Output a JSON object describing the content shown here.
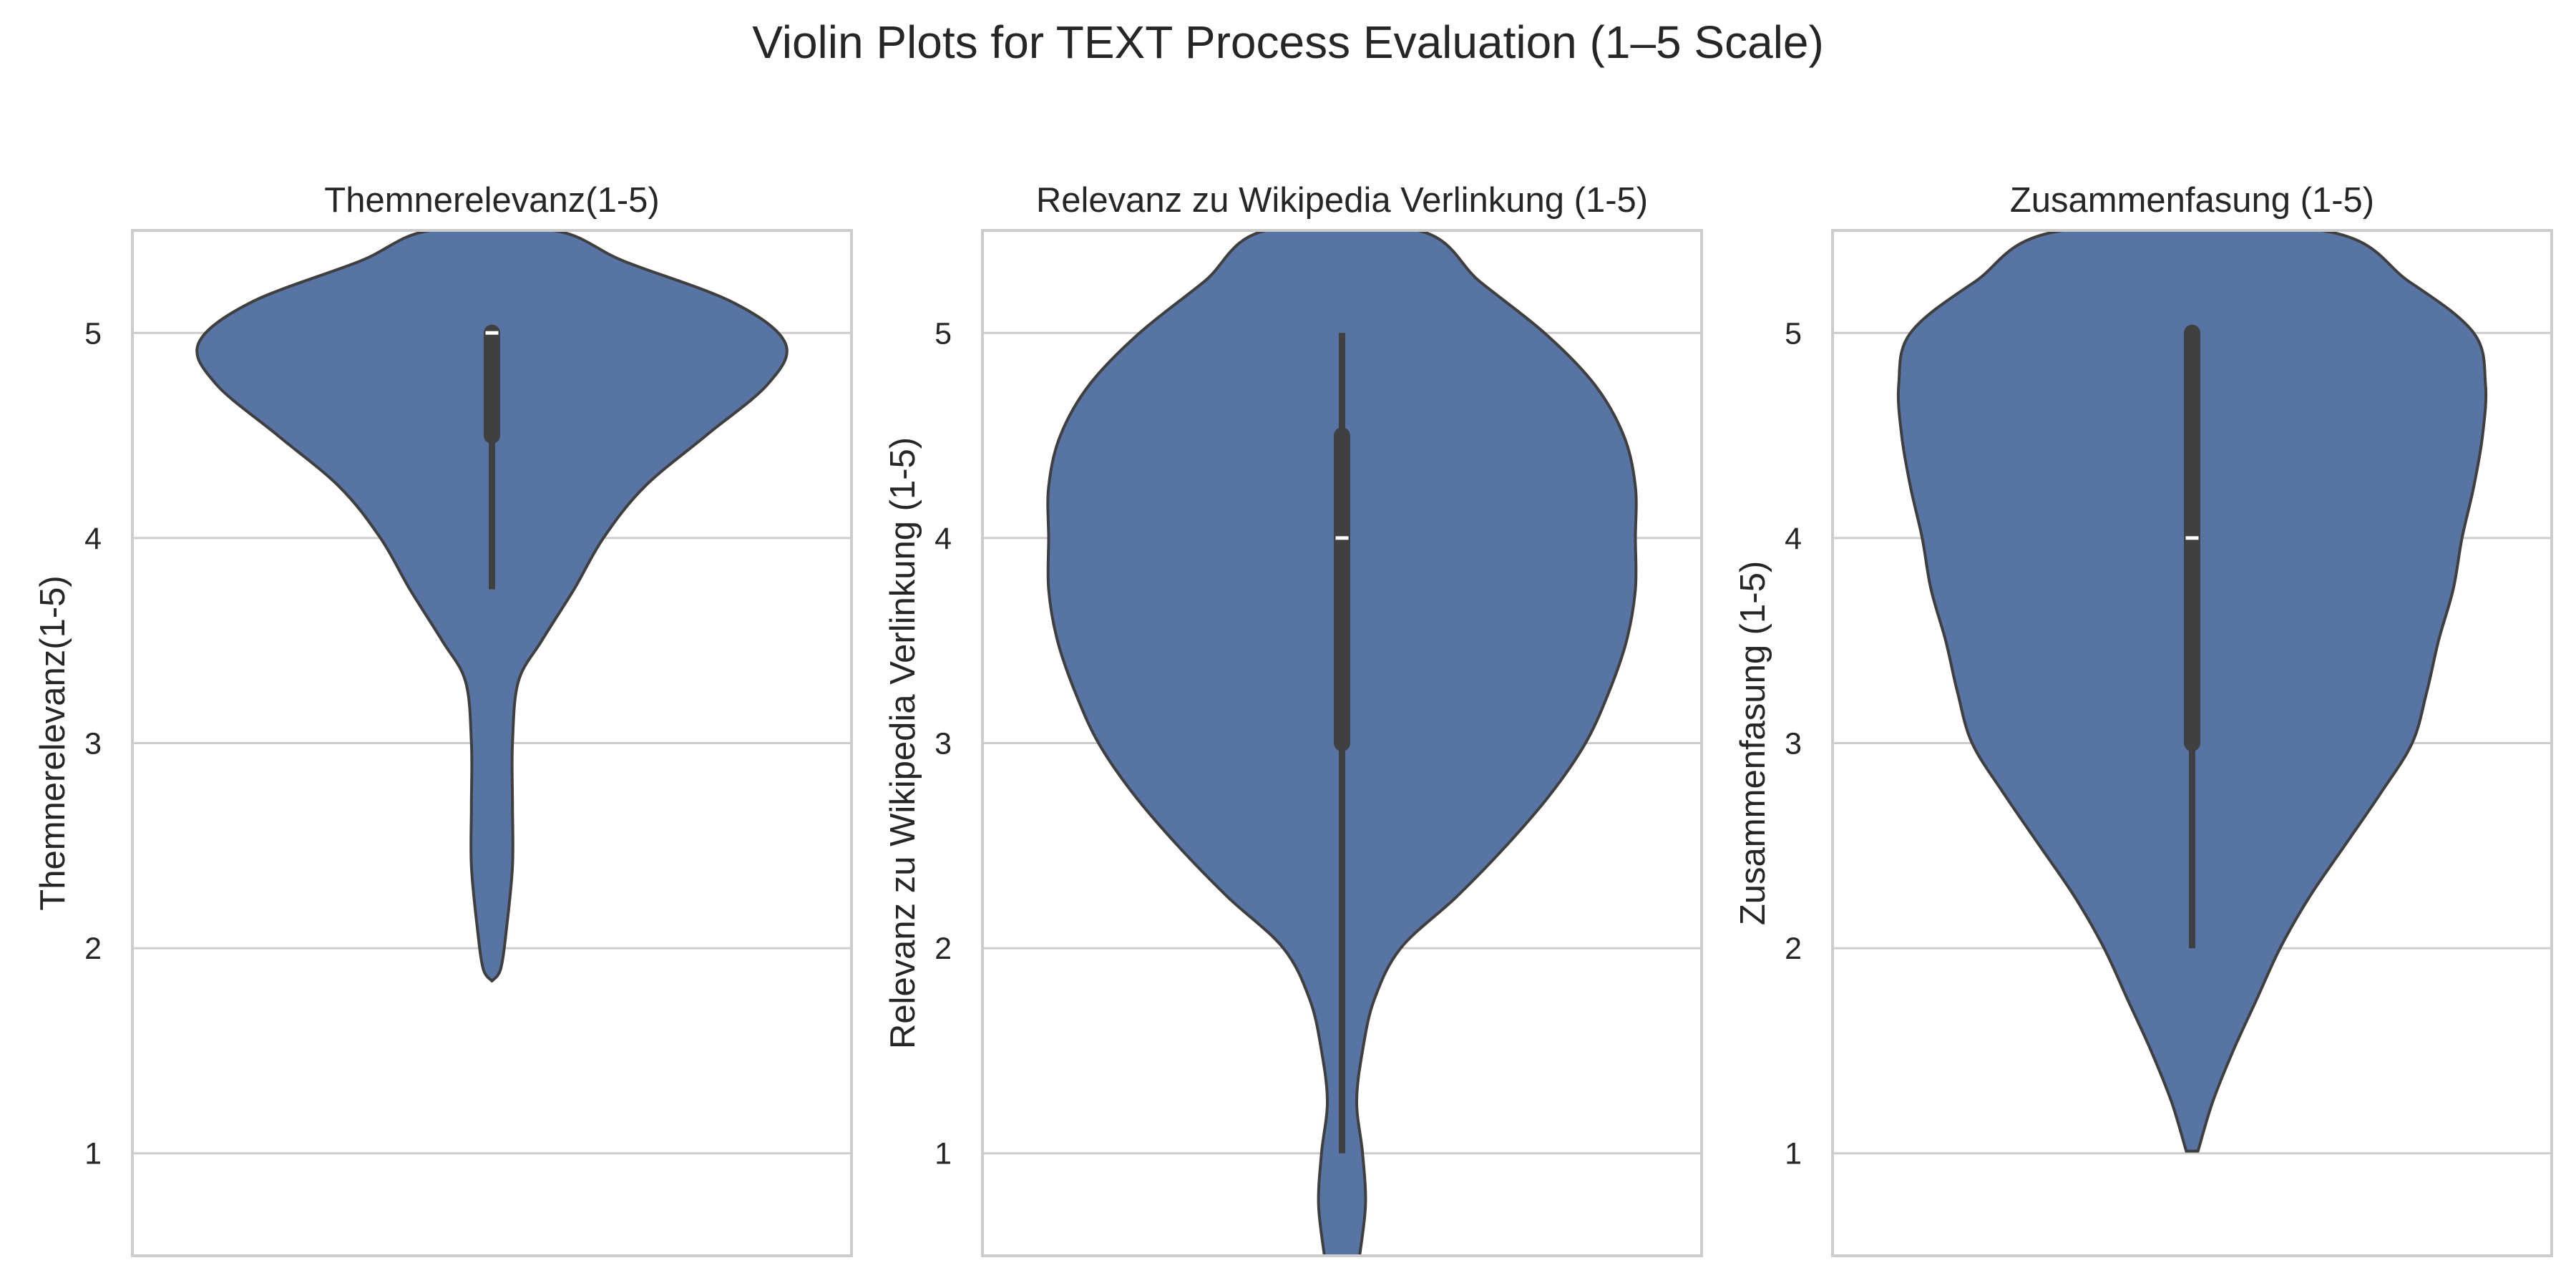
{
  "figure": {
    "title": "Violin Plots for TEXT Process Evaluation (1–5 Scale)"
  },
  "style": {
    "violin_fill": "#5874a4",
    "violin_edge": "#3f3f3f",
    "box_color": "#404040",
    "median_color": "#ffffff",
    "grid_color": "#cccccc",
    "frame_color": "#cccccc"
  },
  "chart_data": [
    {
      "type": "violin",
      "title": "Themnerelevanz(1-5)",
      "xlabel": "",
      "ylabel": "Themnerelevanz(1-5)",
      "ylim": [
        0.5,
        5.5
      ],
      "yticks": [
        "1",
        "2",
        "3",
        "4",
        "5"
      ],
      "grid": true,
      "stats": {
        "min": 3.75,
        "q1": 4.5,
        "median": 5,
        "q3": 5,
        "max": 5
      },
      "density": [
        {
          "y": 1.84,
          "w": 0.0
        },
        {
          "y": 1.9,
          "w": 0.03
        },
        {
          "y": 2.1,
          "w": 0.05
        },
        {
          "y": 2.4,
          "w": 0.07
        },
        {
          "y": 2.7,
          "w": 0.07
        },
        {
          "y": 3.0,
          "w": 0.07
        },
        {
          "y": 3.3,
          "w": 0.09
        },
        {
          "y": 3.5,
          "w": 0.17
        },
        {
          "y": 3.75,
          "w": 0.28
        },
        {
          "y": 4.0,
          "w": 0.38
        },
        {
          "y": 4.25,
          "w": 0.52
        },
        {
          "y": 4.5,
          "w": 0.73
        },
        {
          "y": 4.75,
          "w": 0.94
        },
        {
          "y": 4.95,
          "w": 1.0
        },
        {
          "y": 5.15,
          "w": 0.82
        },
        {
          "y": 5.35,
          "w": 0.45
        },
        {
          "y": 5.5,
          "w": 0.21
        }
      ]
    },
    {
      "type": "violin",
      "title": "Relevanz zu Wikipedia Verlinkung (1-5)",
      "xlabel": "",
      "ylabel": "Relevanz zu Wikipedia Verlinkung (1-5)",
      "ylim": [
        0.5,
        5.5
      ],
      "yticks": [
        "1",
        "2",
        "3",
        "4",
        "5"
      ],
      "grid": true,
      "stats": {
        "min": 1,
        "q1": 3,
        "median": 4,
        "q3": 4.5,
        "max": 5
      },
      "density": [
        {
          "y": 0.5,
          "w": 0.06
        },
        {
          "y": 0.75,
          "w": 0.08
        },
        {
          "y": 1.0,
          "w": 0.07
        },
        {
          "y": 1.25,
          "w": 0.05
        },
        {
          "y": 1.5,
          "w": 0.07
        },
        {
          "y": 1.75,
          "w": 0.11
        },
        {
          "y": 2.0,
          "w": 0.2
        },
        {
          "y": 2.25,
          "w": 0.39
        },
        {
          "y": 2.5,
          "w": 0.56
        },
        {
          "y": 2.75,
          "w": 0.71
        },
        {
          "y": 3.0,
          "w": 0.83
        },
        {
          "y": 3.25,
          "w": 0.91
        },
        {
          "y": 3.5,
          "w": 0.97
        },
        {
          "y": 3.75,
          "w": 1.0
        },
        {
          "y": 4.0,
          "w": 1.0
        },
        {
          "y": 4.25,
          "w": 1.0
        },
        {
          "y": 4.5,
          "w": 0.96
        },
        {
          "y": 4.75,
          "w": 0.86
        },
        {
          "y": 5.0,
          "w": 0.69
        },
        {
          "y": 5.25,
          "w": 0.47
        },
        {
          "y": 5.5,
          "w": 0.26
        }
      ]
    },
    {
      "type": "violin",
      "title": "Zusammenfasung (1-5)",
      "xlabel": "",
      "ylabel": "Zusammenfasung (1-5)",
      "ylim": [
        0.5,
        5.5
      ],
      "yticks": [
        "1",
        "2",
        "3",
        "4",
        "5"
      ],
      "grid": true,
      "stats": {
        "min": 2,
        "q1": 3,
        "median": 4,
        "q3": 5,
        "max": 5
      },
      "density": [
        {
          "y": 1.01,
          "w": 0.02
        },
        {
          "y": 1.25,
          "w": 0.07
        },
        {
          "y": 1.5,
          "w": 0.14
        },
        {
          "y": 1.75,
          "w": 0.22
        },
        {
          "y": 2.0,
          "w": 0.3
        },
        {
          "y": 2.25,
          "w": 0.4
        },
        {
          "y": 2.5,
          "w": 0.52
        },
        {
          "y": 2.75,
          "w": 0.64
        },
        {
          "y": 3.0,
          "w": 0.75
        },
        {
          "y": 3.25,
          "w": 0.8
        },
        {
          "y": 3.5,
          "w": 0.84
        },
        {
          "y": 3.75,
          "w": 0.89
        },
        {
          "y": 4.0,
          "w": 0.92
        },
        {
          "y": 4.25,
          "w": 0.96
        },
        {
          "y": 4.5,
          "w": 0.99
        },
        {
          "y": 4.75,
          "w": 1.0
        },
        {
          "y": 5.0,
          "w": 0.96
        },
        {
          "y": 5.25,
          "w": 0.74
        },
        {
          "y": 5.5,
          "w": 0.44
        }
      ]
    }
  ]
}
